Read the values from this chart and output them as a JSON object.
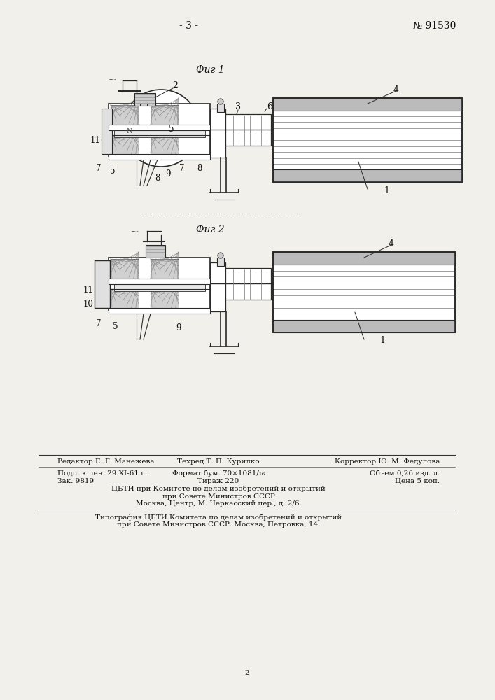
{
  "page_number": "- 3 -",
  "patent_number": "№ 91530",
  "fig1_label": "Фиг 1",
  "fig2_label": "Фиг 2",
  "bg_color": "#f2f0eb",
  "footer_line1_left": "Редактор Е. Г. Манежева",
  "footer_line1_mid": "Техред Т. П. Курилко",
  "footer_line1_right": "Корректор Ю. М. Федулова",
  "footer_line2_left": "Подп. к печ. 29.XI-61 г.",
  "footer_line2_mid": "Формат бум. 70×1081/₁₆",
  "footer_line2_right": "Объем 0,26 изд. л.",
  "footer_line3_left": "Зак. 9819",
  "footer_line3_mid": "Тираж 220",
  "footer_line3_right": "Цена 5 коп.",
  "footer_line4": "ЦБТИ при Комитете по делам изобретений и открытий",
  "footer_line5": "при Совете Министров СССР",
  "footer_line6": "Москва, Центр, М. Черкасский пер., д. 2/6.",
  "footer_line7": "Типография ЦБТИ Комитета по делам изобретений и открытий",
  "footer_line8": "при Совете Министров СССР. Москва, Петровка, 14.",
  "page_num_small": "2"
}
